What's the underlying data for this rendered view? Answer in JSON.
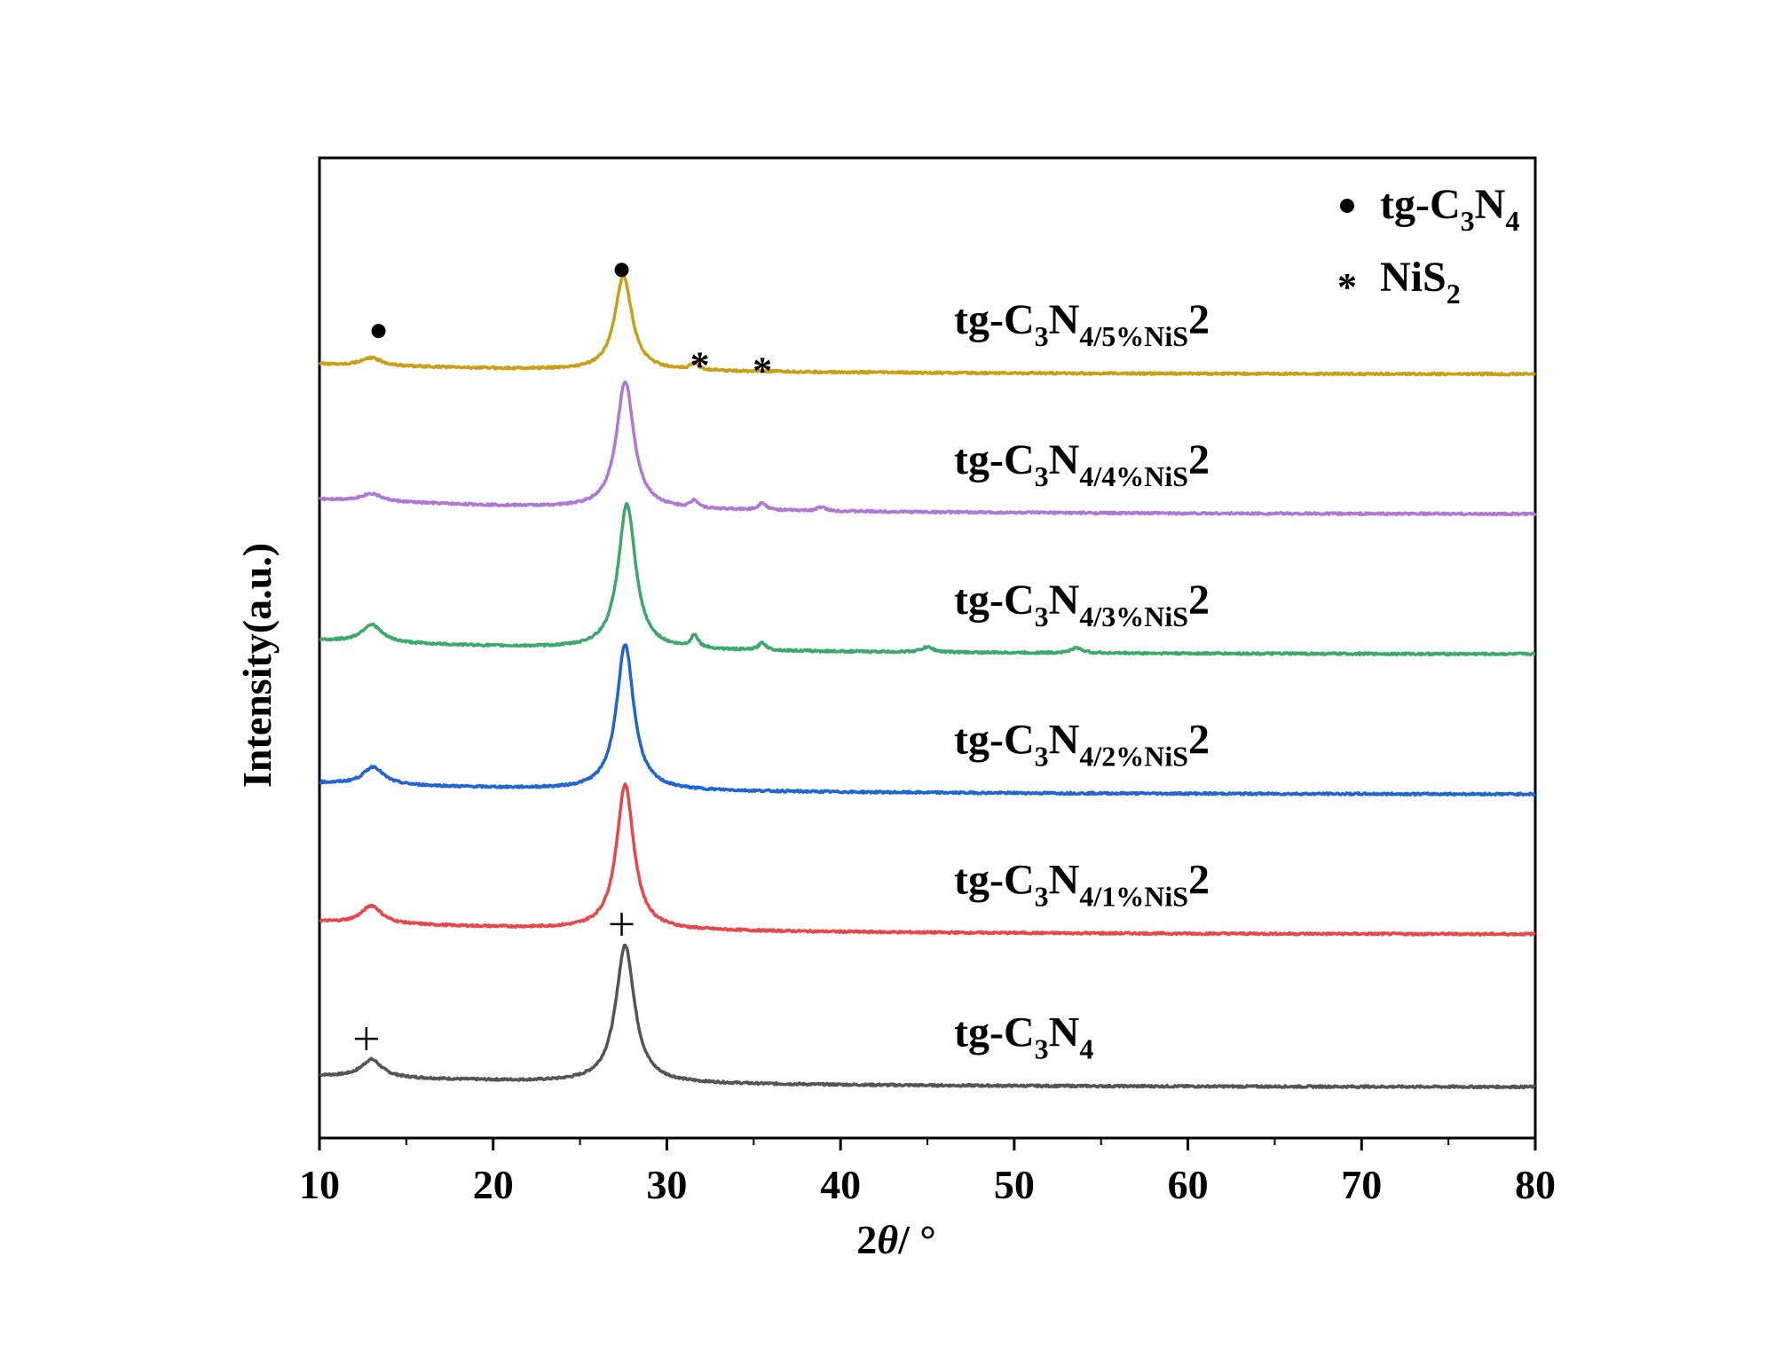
{
  "chart_data": {
    "type": "line",
    "title": "",
    "xlabel_prefix": "2",
    "xlabel_theta": "θ",
    "xlabel_suffix": "/ °",
    "ylabel": "Intensity(a.u.)",
    "xlim": [
      10,
      80
    ],
    "xticks": [
      10,
      20,
      30,
      40,
      50,
      60,
      70,
      80
    ],
    "yticks_shown": false,
    "grid": false,
    "offset_stacked": true,
    "legend": {
      "placement": "top-right",
      "entries": [
        {
          "symbol": "●",
          "name": "tg-C3N4",
          "parts": [
            "tg-C",
            "3",
            "N",
            "4"
          ]
        },
        {
          "symbol": "*",
          "name": "NiS2",
          "parts": [
            "NiS",
            "2"
          ]
        }
      ]
    },
    "series": [
      {
        "name": "tg-C3N4",
        "label_parts": [
          "tg-C",
          "3",
          "N",
          "4"
        ],
        "color": "#555555",
        "baseline": 0.0,
        "start_value": 0.045,
        "end_value": 0.0,
        "peaks": [
          {
            "x": 13.0,
            "height": 0.07,
            "width": 0.7
          },
          {
            "x": 27.6,
            "height": 0.54,
            "width": 0.65
          }
        ],
        "markers": [
          {
            "symbol": "+",
            "x": 12.7,
            "y": 0.19
          },
          {
            "symbol": "+",
            "x": 27.4,
            "y": 0.64
          }
        ]
      },
      {
        "name": "tg-C3N4/1%NiS2",
        "label_parts": [
          "tg-C",
          "3",
          "N",
          "4/1%NiS",
          "2"
        ],
        "color": "#e8474a",
        "baseline": 0.6,
        "start_value": 0.05,
        "end_value": 0.0,
        "peaks": [
          {
            "x": 13.0,
            "height": 0.07,
            "width": 0.7
          },
          {
            "x": 27.6,
            "height": 0.57,
            "width": 0.6
          }
        ],
        "markers": []
      },
      {
        "name": "tg-C3N4/2%NiS2",
        "label_parts": [
          "tg-C",
          "3",
          "N",
          "4/2%NiS",
          "2"
        ],
        "color": "#1f66d4",
        "baseline": 1.15,
        "start_value": 0.045,
        "end_value": 0.0,
        "peaks": [
          {
            "x": 13.1,
            "height": 0.07,
            "width": 0.7
          },
          {
            "x": 27.6,
            "height": 0.57,
            "width": 0.6
          }
        ],
        "markers": []
      },
      {
        "name": "tg-C3N4/3%NiS2",
        "label_parts": [
          "tg-C",
          "3",
          "N",
          "4/3%NiS",
          "2"
        ],
        "color": "#3aa96b",
        "baseline": 1.7,
        "start_value": 0.055,
        "end_value": 0.0,
        "peaks": [
          {
            "x": 13.0,
            "height": 0.07,
            "width": 0.7
          },
          {
            "x": 27.7,
            "height": 0.57,
            "width": 0.6
          },
          {
            "x": 31.6,
            "height": 0.05,
            "width": 0.25
          },
          {
            "x": 35.5,
            "height": 0.03,
            "width": 0.25
          },
          {
            "x": 45.0,
            "height": 0.02,
            "width": 0.4
          },
          {
            "x": 53.6,
            "height": 0.02,
            "width": 0.4
          }
        ],
        "markers": []
      },
      {
        "name": "tg-C3N4/4%NiS2",
        "label_parts": [
          "tg-C",
          "3",
          "N",
          "4/4%NiS",
          "2"
        ],
        "color": "#b077d6",
        "baseline": 2.25,
        "start_value": 0.06,
        "end_value": 0.0,
        "peaks": [
          {
            "x": 13.0,
            "height": 0.03,
            "width": 0.7
          },
          {
            "x": 27.6,
            "height": 0.5,
            "width": 0.6
          },
          {
            "x": 31.6,
            "height": 0.03,
            "width": 0.25
          },
          {
            "x": 35.5,
            "height": 0.03,
            "width": 0.25
          },
          {
            "x": 38.9,
            "height": 0.015,
            "width": 0.3
          }
        ],
        "markers": []
      },
      {
        "name": "tg-C3N4/5%NiS2",
        "label_parts": [
          "tg-C",
          "3",
          "N",
          "4/5%NiS",
          "2"
        ],
        "color": "#c9a016",
        "baseline": 2.8,
        "start_value": 0.04,
        "end_value": 0.0,
        "peaks": [
          {
            "x": 13.0,
            "height": 0.03,
            "width": 0.7
          },
          {
            "x": 27.5,
            "height": 0.37,
            "width": 0.6
          },
          {
            "x": 31.6,
            "height": 0.03,
            "width": 0.25
          }
        ],
        "markers": [
          {
            "symbol": "●",
            "x": 13.4,
            "y": 0.17
          },
          {
            "symbol": "●",
            "x": 27.4,
            "y": 0.41
          },
          {
            "symbol": "*",
            "x": 31.9,
            "y": 0.06
          },
          {
            "symbol": "*",
            "x": 35.5,
            "y": 0.04
          }
        ]
      }
    ]
  }
}
